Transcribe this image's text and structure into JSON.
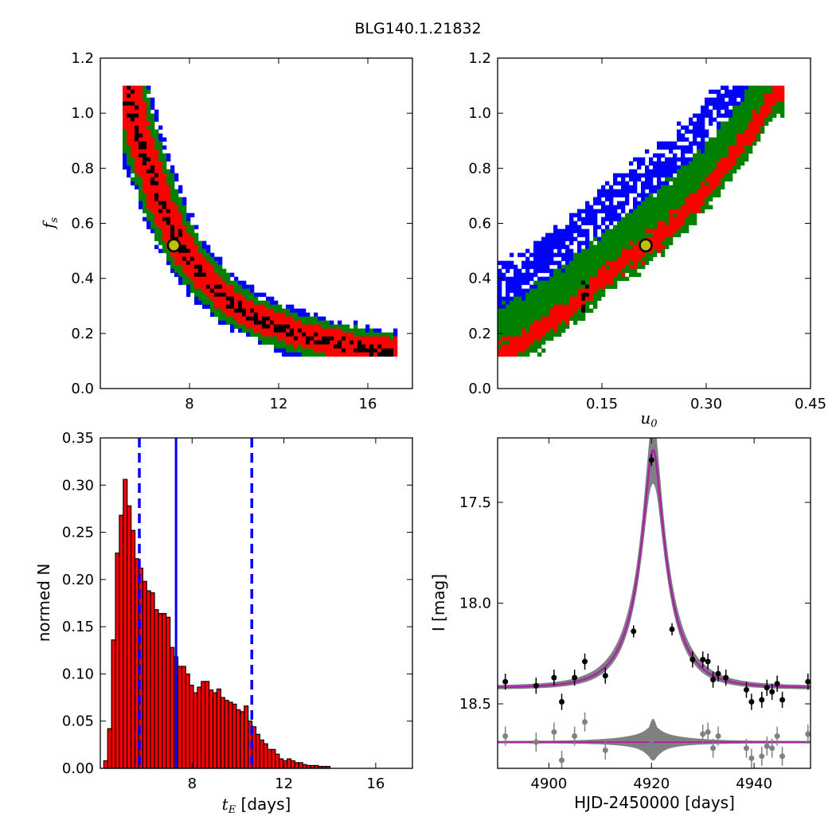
{
  "figure": {
    "title": "BLG140.1.21832"
  },
  "chart_data": [
    {
      "type": "heatmap",
      "panel": "top-left",
      "xlabel": "",
      "ylabel": "f",
      "ylabel_sub": "s",
      "xlim": [
        4.0,
        18.0
      ],
      "ylim": [
        0.0,
        1.2
      ],
      "xticks": [
        "8",
        "12",
        "16"
      ],
      "yticks": [
        "0.0",
        "0.2",
        "0.4",
        "0.6",
        "0.8",
        "1.0",
        "1.2"
      ],
      "levels": [
        "blue",
        "green",
        "red",
        "black"
      ],
      "best_fit": {
        "x": 7.3,
        "y": 0.52
      },
      "band_center": [
        [
          5.2,
          1.1
        ],
        [
          5.6,
          0.95
        ],
        [
          6.2,
          0.8
        ],
        [
          6.8,
          0.66
        ],
        [
          7.4,
          0.55
        ],
        [
          8.0,
          0.47
        ],
        [
          8.8,
          0.39
        ],
        [
          9.6,
          0.33
        ],
        [
          10.5,
          0.28
        ],
        [
          11.5,
          0.24
        ],
        [
          12.8,
          0.2
        ],
        [
          14.2,
          0.17
        ],
        [
          15.8,
          0.145
        ],
        [
          17.0,
          0.135
        ]
      ],
      "band_width": 0.9,
      "colors": {
        "blue": "#0000ff",
        "green": "#008000",
        "red": "#ff0000",
        "black": "#000000",
        "marker": "#bfbf00"
      }
    },
    {
      "type": "heatmap",
      "panel": "top-right",
      "xlabel": "u",
      "xlabel_sub": "0",
      "ylabel": "",
      "xlim": [
        0.0,
        0.45
      ],
      "ylim": [
        0.0,
        1.2
      ],
      "xticks": [
        "0.15",
        "0.30",
        "0.45"
      ],
      "yticks": [
        "0.0",
        "0.2",
        "0.4",
        "0.6",
        "0.8",
        "1.0",
        "1.2"
      ],
      "levels": [
        "blue",
        "green",
        "red",
        "black"
      ],
      "best_fit": {
        "x": 0.213,
        "y": 0.52
      },
      "band_center": [
        [
          0.0,
          0.13
        ],
        [
          0.05,
          0.2
        ],
        [
          0.09,
          0.27
        ],
        [
          0.13,
          0.36
        ],
        [
          0.17,
          0.45
        ],
        [
          0.21,
          0.52
        ],
        [
          0.25,
          0.6
        ],
        [
          0.29,
          0.7
        ],
        [
          0.33,
          0.82
        ],
        [
          0.37,
          0.96
        ],
        [
          0.4,
          1.08
        ]
      ],
      "colors": {
        "blue": "#0000ff",
        "green": "#008000",
        "red": "#ff0000",
        "black": "#000000",
        "marker": "#bfbf00"
      }
    },
    {
      "type": "bar",
      "panel": "bottom-left",
      "xlabel": "t",
      "xlabel_sub": "E",
      "xlabel_unit": " [days]",
      "ylabel": "normed N",
      "xlim": [
        4.0,
        17.6
      ],
      "ylim": [
        0.0,
        0.35
      ],
      "xticks": [
        "8",
        "12",
        "16"
      ],
      "yticks": [
        "0.00",
        "0.05",
        "0.10",
        "0.15",
        "0.20",
        "0.25",
        "0.30",
        "0.35"
      ],
      "bin_start": 4.15,
      "bin_width": 0.17,
      "values": [
        0.008,
        0.042,
        0.136,
        0.228,
        0.268,
        0.306,
        0.278,
        0.252,
        0.222,
        0.212,
        0.198,
        0.188,
        0.186,
        0.168,
        0.164,
        0.164,
        0.16,
        0.128,
        0.118,
        0.108,
        0.108,
        0.1,
        0.088,
        0.08,
        0.086,
        0.092,
        0.092,
        0.083,
        0.08,
        0.084,
        0.075,
        0.072,
        0.07,
        0.068,
        0.062,
        0.06,
        0.066,
        0.05,
        0.044,
        0.036,
        0.03,
        0.026,
        0.02,
        0.02,
        0.015,
        0.01,
        0.008,
        0.01,
        0.008,
        0.006,
        0.006,
        0.004,
        0.003,
        0.003,
        0.003,
        0.002,
        0.002,
        0.002
      ],
      "lines": {
        "median": 7.3,
        "lower": 5.7,
        "upper": 10.6
      },
      "colors": {
        "bar": "#ff0000",
        "edge": "#000000",
        "line": "#0000ff"
      }
    },
    {
      "type": "line",
      "panel": "bottom-right",
      "xlabel": "HJD-2450000 [days]",
      "ylabel": "I [mag]",
      "xlim": [
        4890,
        4951
      ],
      "ylim_top": 17.18,
      "ylim_bottom": 18.82,
      "xticks": [
        "4900",
        "4920",
        "4940"
      ],
      "yticks": [
        "17.5",
        "18.0",
        "18.5"
      ],
      "ytick_values": [
        17.5,
        18.0,
        18.5
      ],
      "model": {
        "t0": 4920.3,
        "tE": 7.3,
        "u0": 0.213,
        "fs": 0.52,
        "base": 18.42
      },
      "data": [
        {
          "t": 4891.5,
          "mag": 18.39,
          "err": 0.04
        },
        {
          "t": 4897.5,
          "mag": 18.41,
          "err": 0.04
        },
        {
          "t": 4901.0,
          "mag": 18.37,
          "err": 0.04
        },
        {
          "t": 4902.5,
          "mag": 18.49,
          "err": 0.04
        },
        {
          "t": 4905.0,
          "mag": 18.37,
          "err": 0.04
        },
        {
          "t": 4907.0,
          "mag": 18.29,
          "err": 0.04
        },
        {
          "t": 4911.0,
          "mag": 18.36,
          "err": 0.04
        },
        {
          "t": 4916.5,
          "mag": 18.14,
          "err": 0.03
        },
        {
          "t": 4920.0,
          "mag": 17.29,
          "err": 0.03
        },
        {
          "t": 4924.0,
          "mag": 18.13,
          "err": 0.03
        },
        {
          "t": 4928.0,
          "mag": 18.28,
          "err": 0.04
        },
        {
          "t": 4930.0,
          "mag": 18.28,
          "err": 0.04
        },
        {
          "t": 4931.0,
          "mag": 18.29,
          "err": 0.04
        },
        {
          "t": 4932.0,
          "mag": 18.38,
          "err": 0.04
        },
        {
          "t": 4933.0,
          "mag": 18.35,
          "err": 0.04
        },
        {
          "t": 4934.5,
          "mag": 18.37,
          "err": 0.04
        },
        {
          "t": 4938.5,
          "mag": 18.43,
          "err": 0.04
        },
        {
          "t": 4939.5,
          "mag": 18.49,
          "err": 0.04
        },
        {
          "t": 4941.5,
          "mag": 18.48,
          "err": 0.04
        },
        {
          "t": 4942.5,
          "mag": 18.42,
          "err": 0.04
        },
        {
          "t": 4943.5,
          "mag": 18.44,
          "err": 0.04
        },
        {
          "t": 4944.5,
          "mag": 18.4,
          "err": 0.04
        },
        {
          "t": 4945.5,
          "mag": 18.48,
          "err": 0.04
        },
        {
          "t": 4950.5,
          "mag": 18.39,
          "err": 0.04
        }
      ],
      "residual_offset": 18.69,
      "residuals": [
        {
          "t": 4891.5,
          "res": -0.03
        },
        {
          "t": 4897.5,
          "res": 0.0
        },
        {
          "t": 4901.0,
          "res": -0.05
        },
        {
          "t": 4902.5,
          "res": 0.09
        },
        {
          "t": 4905.0,
          "res": -0.03
        },
        {
          "t": 4907.0,
          "res": -0.1
        },
        {
          "t": 4911.0,
          "res": 0.04
        },
        {
          "t": 4920.0,
          "res": -0.01
        },
        {
          "t": 4930.0,
          "res": -0.04
        },
        {
          "t": 4931.0,
          "res": -0.05
        },
        {
          "t": 4932.0,
          "res": 0.03
        },
        {
          "t": 4933.0,
          "res": -0.03
        },
        {
          "t": 4938.5,
          "res": 0.03
        },
        {
          "t": 4939.5,
          "res": 0.08
        },
        {
          "t": 4941.5,
          "res": 0.07
        },
        {
          "t": 4942.5,
          "res": 0.02
        },
        {
          "t": 4943.5,
          "res": 0.03
        },
        {
          "t": 4944.5,
          "res": -0.03
        },
        {
          "t": 4945.5,
          "res": 0.07
        },
        {
          "t": 4950.5,
          "res": -0.04
        }
      ],
      "colors": {
        "model": "#aa22aa",
        "envelope": "#808080",
        "data": "#000000",
        "residual": "#808080"
      }
    }
  ]
}
